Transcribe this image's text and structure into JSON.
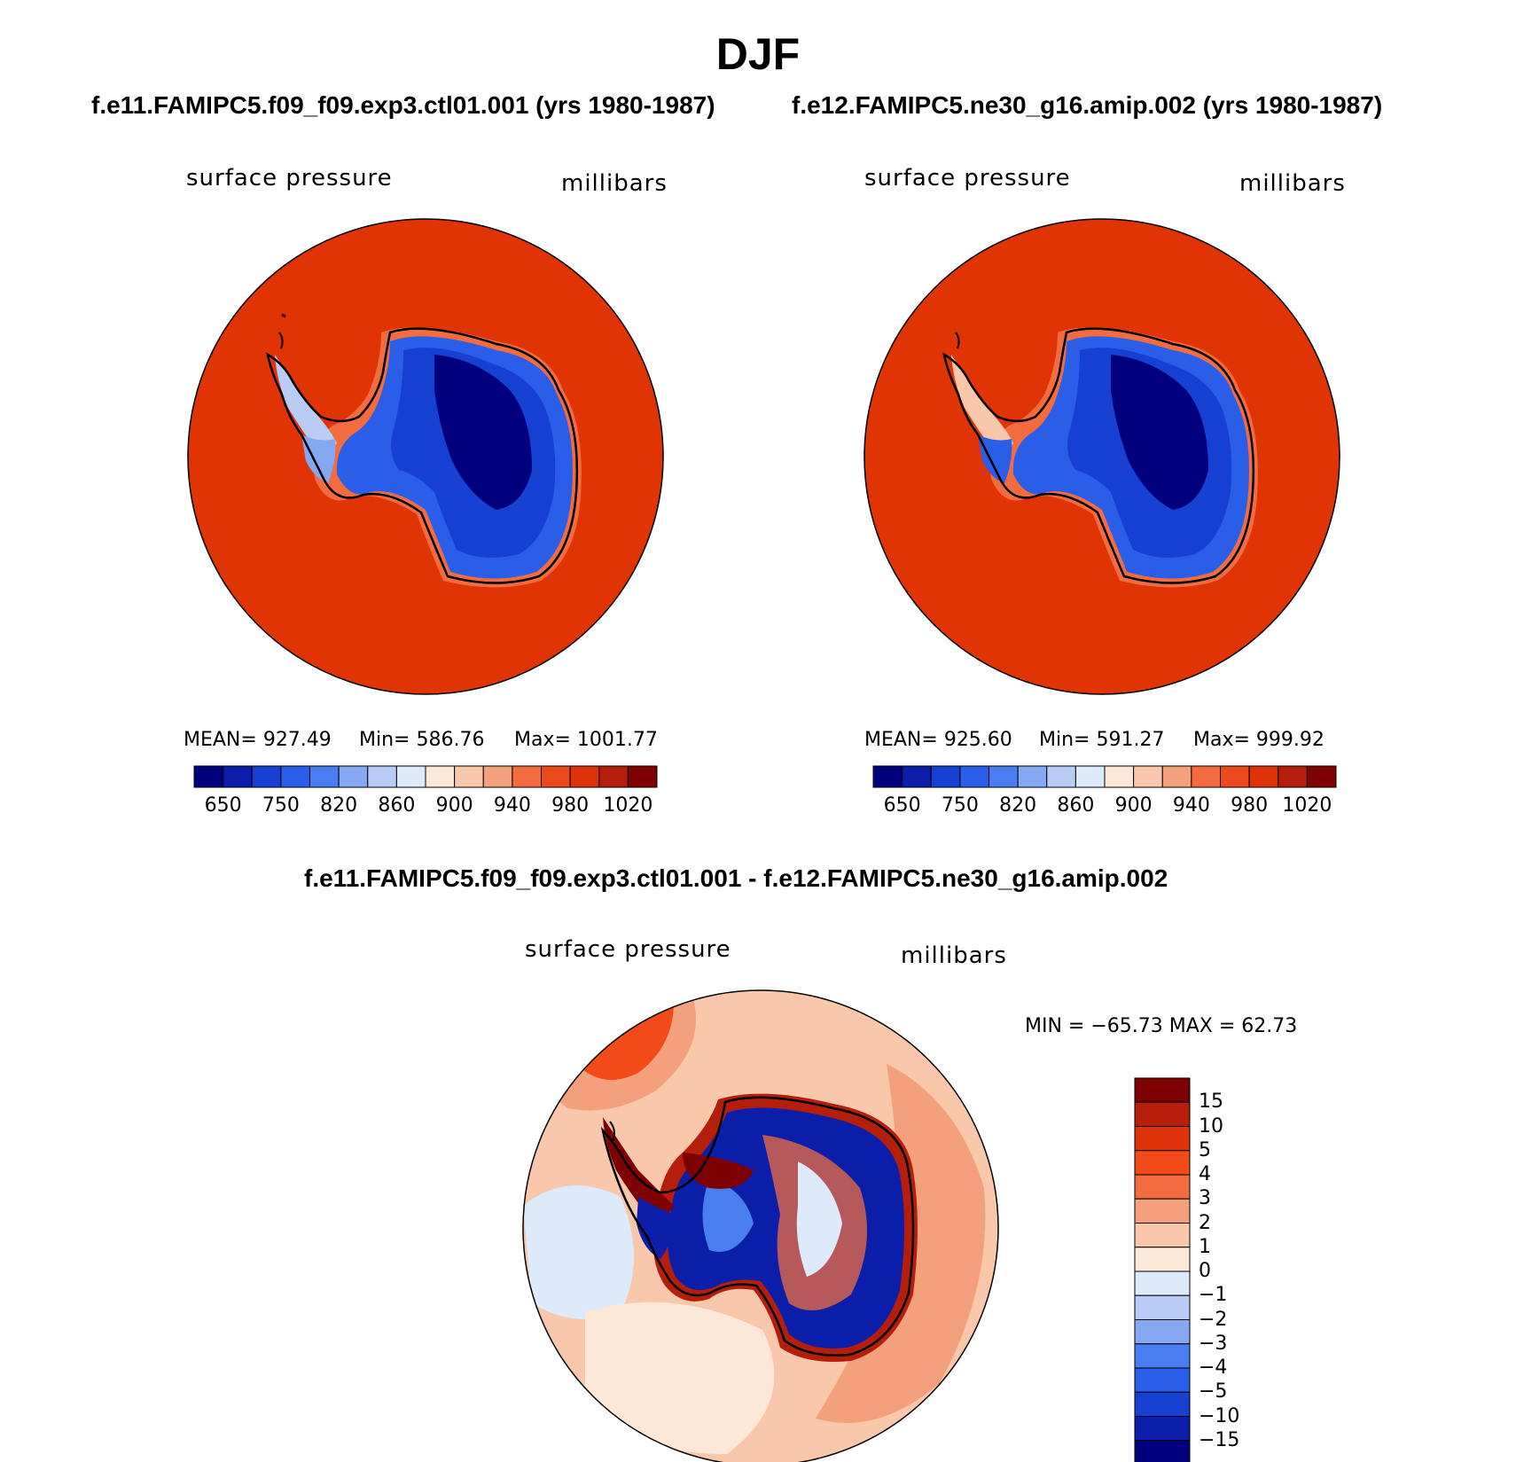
{
  "title": "DJF",
  "cases": {
    "left": "f.e11.FAMIPC5.f09_f09.exp3.ctl01.001 (yrs 1980-1987)",
    "right": "f.e12.FAMIPC5.ne30_g16.amip.002 (yrs 1980-1987)",
    "diff": "f.e11.FAMIPC5.f09_f09.exp3.ctl01.001 - f.e12.FAMIPC5.ne30_g16.amip.002"
  },
  "panels": [
    {
      "variable": "surface pressure",
      "units": "millibars",
      "mean_label": "MEAN= 927.49",
      "min_label": "Min= 586.76",
      "max_label": "Max= 1001.77",
      "stats": {
        "mean": 927.49,
        "min": 586.76,
        "max": 1001.77
      }
    },
    {
      "variable": "surface pressure",
      "units": "millibars",
      "mean_label": "MEAN= 925.60",
      "min_label": "Min= 591.27",
      "max_label": "Max= 999.92",
      "stats": {
        "mean": 925.6,
        "min": 591.27,
        "max": 999.92
      }
    }
  ],
  "diff_panel": {
    "variable": "surface pressure",
    "units": "millibars",
    "minmax_label": "MIN = −65.73 MAX =  62.73",
    "stats": {
      "min": -65.73,
      "max": 62.73
    }
  },
  "colorbar_main": {
    "tick_labels": [
      "650",
      "750",
      "820",
      "860",
      "900",
      "940",
      "980",
      "1020"
    ],
    "colors": [
      "#00007f",
      "#0a1eaa",
      "#1640d2",
      "#2a5ee8",
      "#4a7ef0",
      "#84a8f2",
      "#b8ccf6",
      "#ddeafb",
      "#fde8d8",
      "#f9c7a9",
      "#f5a07c",
      "#f26c40",
      "#ec4a1c",
      "#de3208",
      "#b41e0a",
      "#7f0000"
    ]
  },
  "colorbar_diff": {
    "tick_labels": [
      "15",
      "10",
      "5",
      "4",
      "3",
      "2",
      "1",
      "0",
      "−1",
      "−2",
      "−3",
      "−4",
      "−5",
      "−10",
      "−15"
    ],
    "colors": [
      "#7f0000",
      "#b41e0a",
      "#de3208",
      "#f24a18",
      "#f26c40",
      "#f5a07c",
      "#f9c7a9",
      "#fde8d8",
      "#ddeafb",
      "#b8ccf6",
      "#84a8f2",
      "#4a7ef0",
      "#2a5ee8",
      "#1640d2",
      "#0a1eaa",
      "#00007f"
    ]
  },
  "map_colors": {
    "ocean_main": "#e13404",
    "ocean_edge": "#b41e0a",
    "diff_background": "#f9c7a9",
    "diff_warm": "#f5a07c",
    "diff_hot": "#f24a18",
    "diff_cool": "#ddeafb"
  }
}
